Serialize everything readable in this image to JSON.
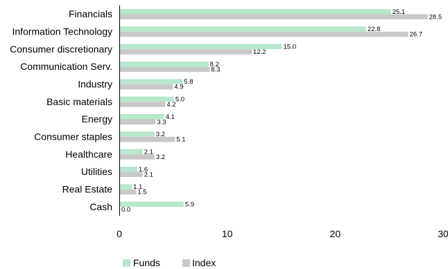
{
  "chart_data": {
    "type": "bar",
    "orientation": "horizontal",
    "categories": [
      "Financials",
      "Information Technology",
      "Consumer discretionary",
      "Communication Serv.",
      "Industry",
      "Basic materials",
      "Energy",
      "Consumer staples",
      "Healthcare",
      "Utilities",
      "Real Estate",
      "Cash"
    ],
    "series": [
      {
        "name": "Funds",
        "color": "#b7e8cc",
        "values": [
          25.1,
          22.8,
          15.0,
          8.2,
          5.8,
          5.0,
          4.1,
          3.2,
          2.1,
          1.6,
          1.1,
          5.9
        ],
        "labels": [
          "25.1",
          "22.8",
          "15.0",
          "8.2",
          "5.8",
          "5.0",
          "4.1",
          "3.2",
          "2.1",
          "1.6",
          "1.1",
          "5.9"
        ]
      },
      {
        "name": "Index",
        "color": "#c8c8c8",
        "values": [
          28.5,
          26.7,
          12.2,
          8.3,
          4.9,
          4.2,
          3.3,
          5.1,
          3.2,
          2.1,
          1.5,
          0.0
        ],
        "labels": [
          "28.5",
          "26.7",
          "12.2",
          "8.3",
          "4.9",
          "4.2",
          "3.3",
          "5.1",
          "3.2",
          "2.1",
          "1.5",
          "0.0"
        ]
      }
    ],
    "xlim": [
      0,
      30
    ],
    "xticks": [
      "0",
      "10",
      "20",
      "30"
    ],
    "grid": false,
    "legend_position": "bottom-left",
    "title": "",
    "xlabel": "",
    "ylabel": ""
  }
}
